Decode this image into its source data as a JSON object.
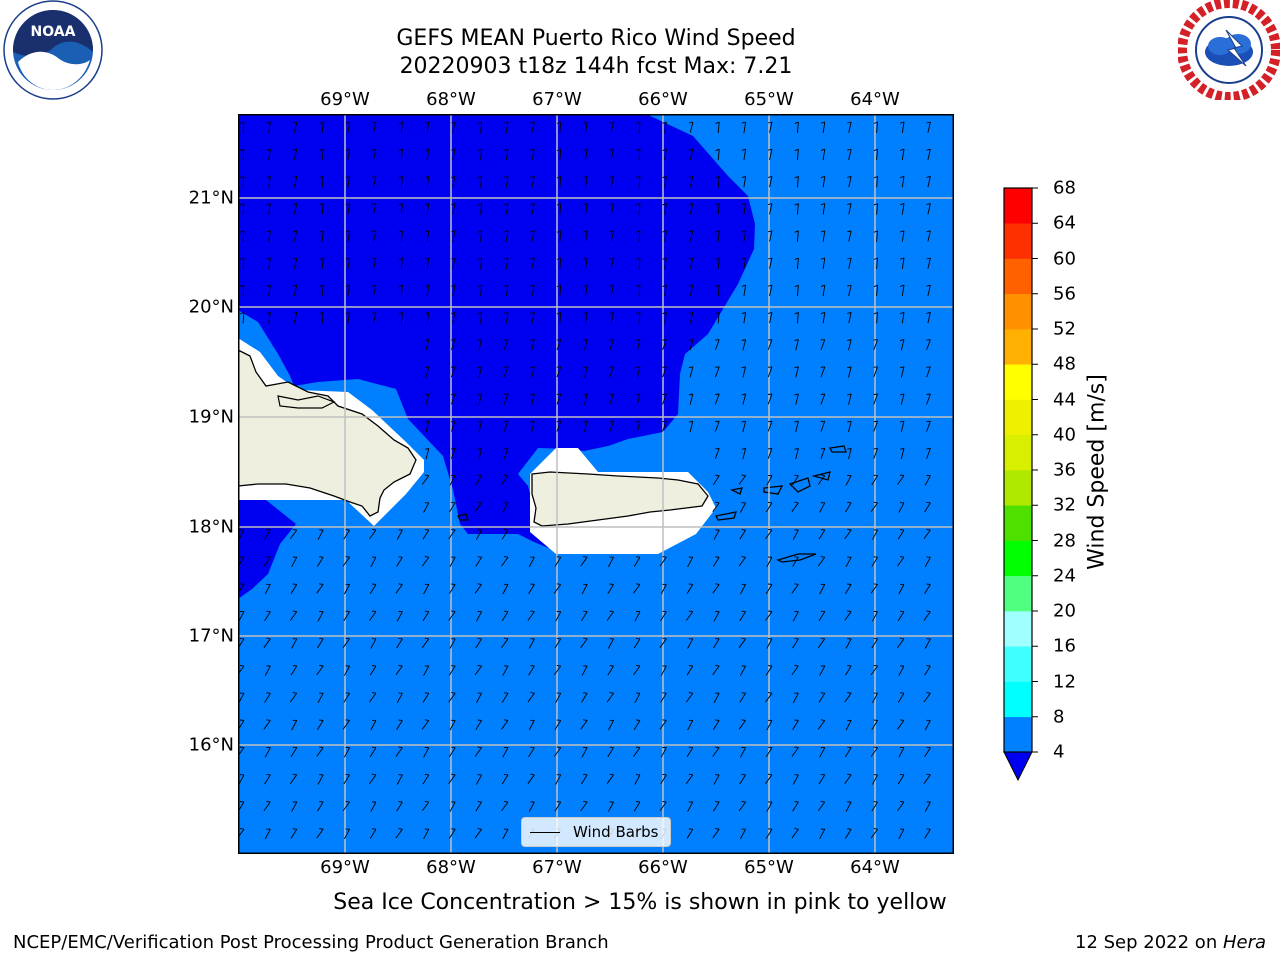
{
  "header": {
    "title_line1": "GEFS MEAN Puerto Rico Wind Speed",
    "title_line2": "20220903 t18z 144h fcst   Max: 7.21"
  },
  "logos": {
    "noaa": {
      "text": "NOAA",
      "ring_text": "NATIONAL OCEANIC AND ATMOSPHERIC ADMINISTRATION · U.S. DEPARTMENT OF COMMERCE"
    },
    "nws": {
      "ring_text": "NATIONAL WEATHER SERVICE"
    }
  },
  "map": {
    "lon_labels": [
      "69°W",
      "68°W",
      "67°W",
      "66°W",
      "65°W",
      "64°W"
    ],
    "lat_labels": [
      "21°N",
      "20°N",
      "19°N",
      "18°N",
      "17°N",
      "16°N"
    ],
    "colors": {
      "band_4_8": "#0080ff",
      "band_below_4": "#0000f0",
      "land": "#efefdf",
      "mask": "#ffffff",
      "grid": "#bfbfbf"
    }
  },
  "colorbar": {
    "label": "Wind Speed [m/s]",
    "ticks": [
      "68",
      "64",
      "60",
      "56",
      "52",
      "48",
      "44",
      "40",
      "36",
      "32",
      "28",
      "24",
      "20",
      "16",
      "12",
      "8",
      "4"
    ],
    "colors_bottom_to_top": [
      "#0080ff",
      "#00ffff",
      "#40ffff",
      "#a0ffff",
      "#50ff80",
      "#00ff00",
      "#50e000",
      "#b0e800",
      "#d8f000",
      "#eef000",
      "#ffff00",
      "#ffb000",
      "#ff9000",
      "#ff6000",
      "#ff3000",
      "#ff0000"
    ],
    "extend_min_color": "#0000f0"
  },
  "legend": {
    "label": "Wind Barbs"
  },
  "note": "Sea Ice Concentration > 15% is shown in pink to yellow",
  "footer": {
    "left": "NCEP/EMC/Verification Post Processing Product Generation Branch",
    "right_prefix": "12 Sep 2022 on ",
    "right_machine": "Hera"
  }
}
